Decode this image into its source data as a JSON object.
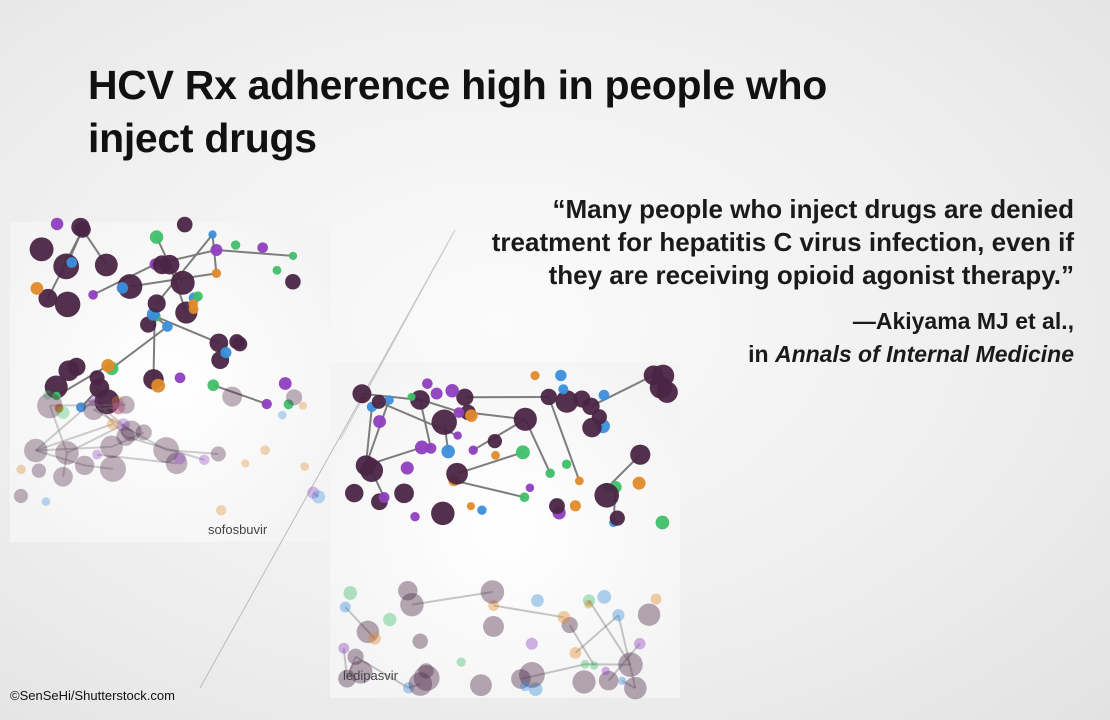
{
  "header": {
    "title_lines": [
      "HCV Rx adherence high in people who",
      "inject drugs"
    ]
  },
  "quote": {
    "lines": [
      "“Many people who inject drugs are denied",
      "treatment for hepatitis C virus infection, even if",
      "they are receiving opioid agonist therapy.”"
    ],
    "author": "—Akiyama MJ et al.,",
    "prefix": "in",
    "journal": "Annals of Internal Medicine"
  },
  "images": [
    {
      "label": "sofosbuvir"
    },
    {
      "label": "ledipasvir"
    }
  ],
  "credit": "©SenSeHi/Shutterstock.com"
}
